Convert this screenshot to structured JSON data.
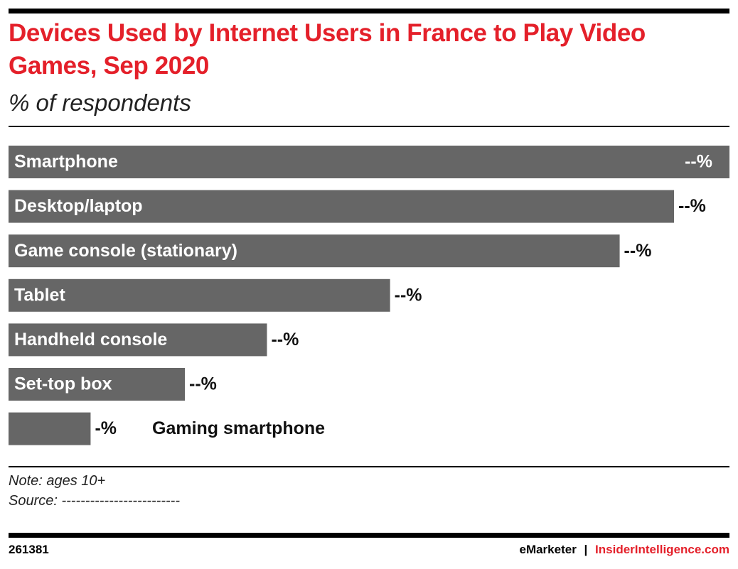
{
  "chart_data": {
    "type": "hbar",
    "title": "Devices Used by Internet Users in France to Play Video Games, Sep 2020",
    "subtitle": "% of respondents",
    "categories": [
      "Smartphone",
      "Desktop/laptop",
      "Game console (stationary)",
      "Tablet",
      "Handheld console",
      "Set-top box",
      "Gaming smartphone"
    ],
    "values": [
      65,
      60,
      55.1,
      34.4,
      23.3,
      15.9,
      7.4
    ],
    "value_labels": [
      "--%",
      "--%",
      "--%",
      "--%",
      "--%",
      "--%",
      "-%"
    ],
    "color": "#666666",
    "xlim": [
      0,
      65
    ],
    "note": "Note: ages 10+",
    "source": "Source: -------------------------",
    "id": "261381",
    "brand": "eMarketer",
    "separator": "|",
    "site": "InsiderIntelligence.com"
  }
}
